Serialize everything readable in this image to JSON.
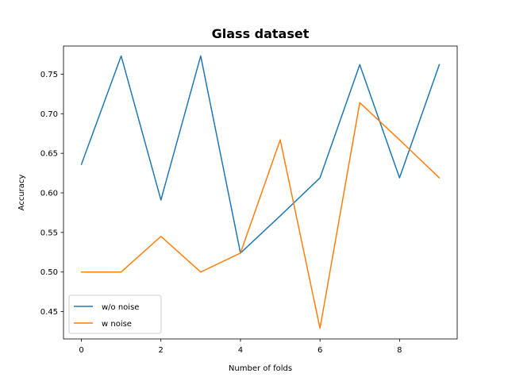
{
  "chart_data": {
    "type": "line",
    "title": "Glass dataset",
    "xlabel": "Number of folds",
    "ylabel": "Accuracy",
    "xlim": [
      -0.45,
      9.45
    ],
    "ylim": [
      0.4155,
      0.7855
    ],
    "xticks": [
      0,
      2,
      4,
      6,
      8
    ],
    "yticks": [
      0.45,
      0.5,
      0.55,
      0.6,
      0.65,
      0.7,
      0.75
    ],
    "ytick_labels": [
      "0.45",
      "0.50",
      "0.55",
      "0.60",
      "0.65",
      "0.70",
      "0.75"
    ],
    "grid": false,
    "legend_position": "lower-left",
    "x": [
      0,
      1,
      2,
      3,
      4,
      5,
      6,
      7,
      8,
      9
    ],
    "series": [
      {
        "name": "w/o noise",
        "color": "#1f77b4",
        "values": [
          0.636,
          0.773,
          0.591,
          0.773,
          0.524,
          0.571,
          0.619,
          0.762,
          0.619,
          0.762
        ]
      },
      {
        "name": "w noise",
        "color": "#ff7f0e",
        "values": [
          0.5,
          0.5,
          0.545,
          0.5,
          0.524,
          0.667,
          0.429,
          0.714,
          0.667,
          0.619
        ]
      }
    ]
  }
}
